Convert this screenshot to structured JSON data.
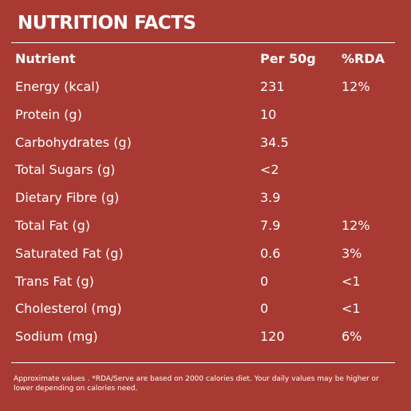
{
  "header": {
    "title": "NUTRITION FACTS"
  },
  "table": {
    "columns": [
      "Nutrient",
      "Per 50g",
      "%RDA"
    ],
    "rows": [
      [
        "Energy (kcal)",
        "231",
        "12%"
      ],
      [
        "Protein (g)",
        "10",
        ""
      ],
      [
        "Carbohydrates (g)",
        "34.5",
        ""
      ],
      [
        "Total Sugars (g)",
        "<2",
        ""
      ],
      [
        "Dietary Fibre (g)",
        "3.9",
        ""
      ],
      [
        "Total Fat (g)",
        "7.9",
        "12%"
      ],
      [
        "Saturated Fat (g)",
        "0.6",
        "3%"
      ],
      [
        "Trans Fat (g)",
        "0",
        "<1"
      ],
      [
        "Cholesterol (mg)",
        "0",
        "<1"
      ],
      [
        "Sodium (mg)",
        "120",
        "6%"
      ]
    ]
  },
  "footer": {
    "note": "Approximate values . *RDA/Serve are based on 2000 calories diet. Your daily values may be higher or lower depending on calories need."
  }
}
